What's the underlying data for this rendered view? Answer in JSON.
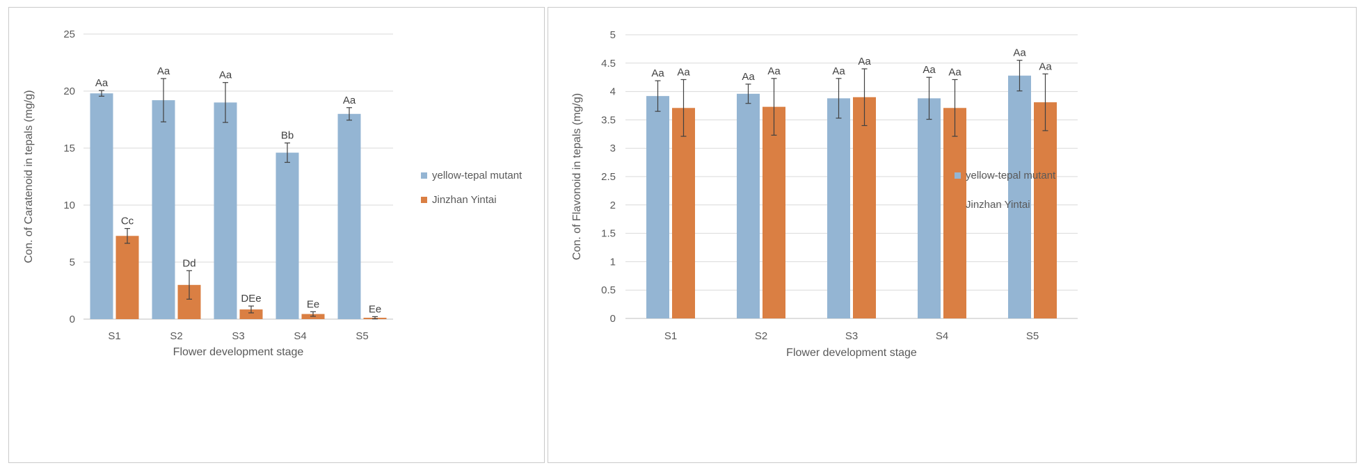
{
  "chart_data": [
    {
      "type": "bar",
      "title": "",
      "xlabel": "Flower  development stage",
      "ylabel": "Con. of Caratenoid in tepals (mg/g)",
      "ylim": [
        0,
        25
      ],
      "yticks": [
        0,
        5,
        10,
        15,
        20,
        25
      ],
      "ytick_labels": [
        "0",
        "5",
        "10",
        "15",
        "20",
        "25"
      ],
      "categories": [
        "S1",
        "S2",
        "S3",
        "S4",
        "S5"
      ],
      "grid": true,
      "legend": "right",
      "series": [
        {
          "name": "yellow-tepal mutant",
          "color": "#94b5d3",
          "values": [
            19.8,
            19.2,
            19.0,
            14.6,
            18.0
          ],
          "errors": [
            0.25,
            1.9,
            1.75,
            0.85,
            0.55
          ],
          "labels": [
            "Aa",
            "Aa",
            "Aa",
            "Bb",
            "Aa"
          ]
        },
        {
          "name": "Jinzhan Yintai",
          "color": "#da7f43",
          "values": [
            7.3,
            3.0,
            0.85,
            0.45,
            0.12
          ],
          "errors": [
            0.65,
            1.25,
            0.3,
            0.2,
            0.1
          ],
          "labels": [
            "Cc",
            "Dd",
            "DEe",
            "Ee",
            "Ee"
          ]
        }
      ]
    },
    {
      "type": "bar",
      "title": "",
      "xlabel": "Flower development stage",
      "ylabel": "Con. of Flavonoid in tepals (mg/g)",
      "ylim": [
        0,
        5
      ],
      "yticks": [
        0,
        0.5,
        1,
        1.5,
        2,
        2.5,
        3,
        3.5,
        4,
        4.5,
        5
      ],
      "ytick_labels": [
        "0",
        "0.5",
        "1",
        "1.5",
        "2",
        "2.5",
        "3",
        "3.5",
        "4",
        "4.5",
        "5"
      ],
      "categories": [
        "S1",
        "S2",
        "S3",
        "S4",
        "S5"
      ],
      "grid": true,
      "legend": "right",
      "series": [
        {
          "name": "yellow-tepal mutant",
          "color": "#94b5d3",
          "values": [
            3.92,
            3.96,
            3.88,
            3.88,
            4.28
          ],
          "errors": [
            0.27,
            0.17,
            0.35,
            0.37,
            0.27
          ],
          "labels": [
            "Aa",
            "Aa",
            "Aa",
            "Aa",
            "Aa"
          ]
        },
        {
          "name": "Jinzhan Yintai",
          "color": "#da7f43",
          "values": [
            3.71,
            3.73,
            3.9,
            3.71,
            3.81
          ],
          "errors": [
            0.5,
            0.5,
            0.5,
            0.5,
            0.5
          ],
          "labels": [
            "Aa",
            "Aa",
            "Aa",
            "Aa",
            "Aa"
          ]
        }
      ]
    }
  ]
}
